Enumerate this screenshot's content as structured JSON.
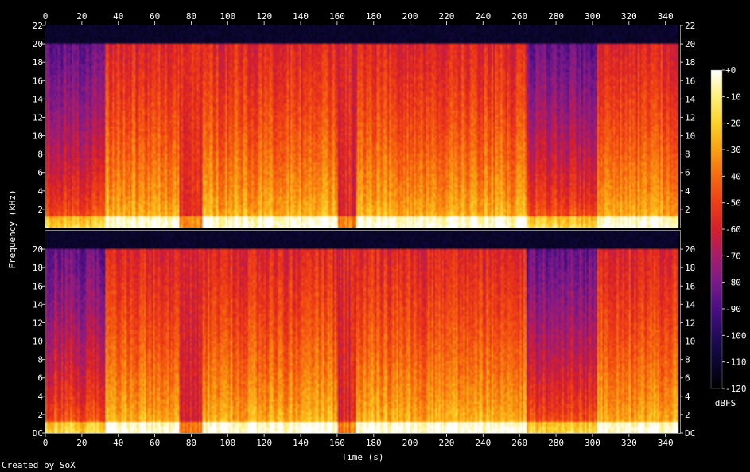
{
  "chart_data": {
    "type": "heatmap",
    "subtype": "spectrogram",
    "channels": 2,
    "xlabel": "Time (s)",
    "ylabel": "Frequency (kHz)",
    "xlim": [
      0,
      348
    ],
    "ylim": [
      0,
      22
    ],
    "x_ticks": [
      "0",
      "20",
      "40",
      "60",
      "80",
      "100",
      "120",
      "140",
      "160",
      "180",
      "200",
      "220",
      "240",
      "260",
      "280",
      "300",
      "320",
      "340"
    ],
    "x_tick_values": [
      0,
      20,
      40,
      60,
      80,
      100,
      120,
      140,
      160,
      180,
      200,
      220,
      240,
      260,
      280,
      300,
      320,
      340
    ],
    "y_ticks_top": [
      "2",
      "4",
      "6",
      "8",
      "10",
      "12",
      "14",
      "16",
      "18",
      "20",
      "22"
    ],
    "y_ticks_bottom": [
      "DC",
      "2",
      "4",
      "6",
      "8",
      "10",
      "12",
      "14",
      "16",
      "18",
      "20"
    ],
    "y_tick_values_top": [
      2,
      4,
      6,
      8,
      10,
      12,
      14,
      16,
      18,
      20,
      22
    ],
    "y_tick_values_bottom": [
      0,
      2,
      4,
      6,
      8,
      10,
      12,
      14,
      16,
      18,
      20
    ],
    "colorbar": {
      "label": "dBFS",
      "range": [
        -120,
        0
      ],
      "ticks": [
        "+0",
        "-10",
        "-20",
        "-30",
        "-40",
        "-50",
        "-60",
        "-70",
        "-80",
        "-90",
        "-100",
        "-110",
        "-120"
      ],
      "tick_values": [
        0,
        -10,
        -20,
        -30,
        -40,
        -50,
        -60,
        -70,
        -80,
        -90,
        -100,
        -110,
        -120
      ]
    },
    "content_cutoff_khz": 20,
    "segments": [
      {
        "t": [
          0,
          33
        ],
        "description": "quiet intro",
        "low_khz_level": "orange",
        "high_khz_level": "purple"
      },
      {
        "t": [
          33,
          73
        ],
        "description": "full band",
        "low_khz_level": "yellow",
        "high_khz_level": "red"
      },
      {
        "t": [
          73,
          86
        ],
        "description": "dip",
        "low_khz_level": "red",
        "high_khz_level": "red"
      },
      {
        "t": [
          86,
          160
        ],
        "description": "full band",
        "low_khz_level": "yellow",
        "high_khz_level": "red"
      },
      {
        "t": [
          160,
          170
        ],
        "description": "dip",
        "low_khz_level": "red",
        "high_khz_level": "red"
      },
      {
        "t": [
          170,
          264
        ],
        "description": "full band",
        "low_khz_level": "yellow",
        "high_khz_level": "red"
      },
      {
        "t": [
          264,
          303
        ],
        "description": "quieter section",
        "low_khz_level": "orange",
        "high_khz_level": "purple"
      },
      {
        "t": [
          303,
          347
        ],
        "description": "full band",
        "low_khz_level": "yellow",
        "high_khz_level": "red"
      }
    ]
  },
  "credit": "Created by SoX",
  "colors": {
    "background": "#000000",
    "palette": [
      "#000000",
      "#0b0630",
      "#230b5c",
      "#4a0e83",
      "#7a1a8a",
      "#a81c6a",
      "#d61f2a",
      "#ef3d15",
      "#f66a0f",
      "#faa012",
      "#fcd226",
      "#fdf07a",
      "#ffffff"
    ]
  }
}
